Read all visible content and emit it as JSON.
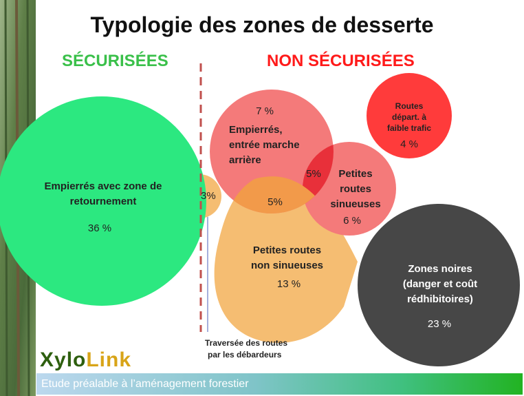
{
  "title": "Typologie des zones de desserte",
  "headers": {
    "secure": "SÉCURISÉES",
    "non_secure": "NON SÉCURISÉES"
  },
  "zones": {
    "empierres_retournement": {
      "label_line1": "Empierrés avec zone de",
      "label_line2": "retournement",
      "percent": "36 %"
    },
    "traversee": {
      "percent": "3%"
    },
    "empierres_marche_arriere": {
      "percent": "7 %",
      "label_line1": "Empierrés,",
      "label_line2": "entrée marche",
      "label_line3": "arrière"
    },
    "overlap_empierres_sinueuses": {
      "percent": "5%"
    },
    "overlap_empierres_non_sinueuses": {
      "percent": "5%"
    },
    "petites_routes_sinueuses": {
      "label_line1": "Petites",
      "label_line2": "routes",
      "label_line3": "sinueuses",
      "percent": "6 %"
    },
    "routes_faible_trafic": {
      "label_line1": "Routes",
      "label_line2": "départ. à",
      "label_line3": "faible trafic",
      "percent": "4 %"
    },
    "petites_routes_non_sinueuses": {
      "label_line1": "Petites routes",
      "label_line2": "non sinueuses",
      "percent": "13 %"
    },
    "zones_noires": {
      "label_line1": "Zones noires",
      "label_line2": "(danger et coût",
      "label_line3": "rédhibitoires)",
      "percent": "23 %"
    }
  },
  "note": {
    "line1": "Traversée des routes",
    "line2": "par les débardeurs"
  },
  "logo": {
    "part1": "Xylo",
    "part2": "Link"
  },
  "footer": "Etude préalable à l’aménagement forestier",
  "colors": {
    "green": "#2ce880",
    "light_red": "#f47a7a",
    "red": "#ff3b3b",
    "orange": "#f5bd72",
    "dark_orange": "#f29a4a",
    "dark_red": "#e8303a",
    "dark_grey": "#474747",
    "divider": "#c0504d"
  }
}
